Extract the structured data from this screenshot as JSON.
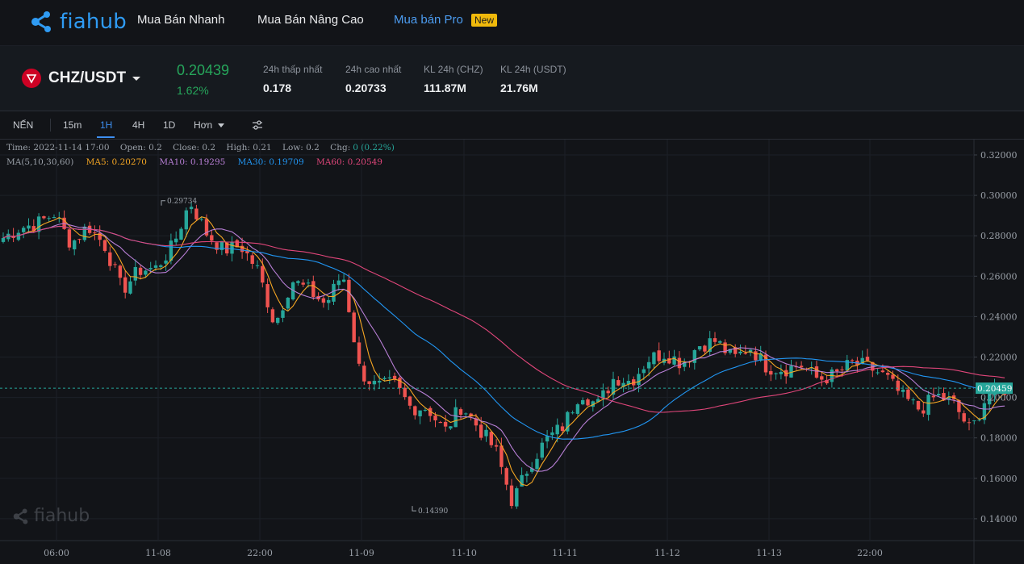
{
  "nav": {
    "logo_text": "fiahub",
    "items": [
      {
        "label": "Mua Bán Nhanh"
      },
      {
        "label": "Mua Bán Nâng Cao"
      },
      {
        "label": "Mua bán Pro"
      }
    ],
    "new_badge": "New"
  },
  "ticker": {
    "pair": "CHZ/USDT",
    "price": "0.20439",
    "change_pct": "1.62%",
    "stats": [
      {
        "label": "24h thấp nhất",
        "value": "0.178"
      },
      {
        "label": "24h cao nhất",
        "value": "0.20733"
      },
      {
        "label": "KL 24h (CHZ)",
        "value": "111.87M"
      },
      {
        "label": "KL 24h (USDT)",
        "value": "21.76M"
      }
    ]
  },
  "toolbar": {
    "chart_type": "NẾN",
    "intervals": [
      "15m",
      "1H",
      "4H",
      "1D"
    ],
    "active_interval": "1H",
    "more_label": "Hơn",
    "settings_icon": "sliders-icon"
  },
  "legend": {
    "time": "Time: 2022-11-14 17:00",
    "open": "Open: 0.2",
    "close": "Close: 0.2",
    "high": "High: 0.21",
    "low": "Low: 0.2",
    "chg_label": "Chg:",
    "chg_value": "0 (0.22%)",
    "ma_label": "MA(5,10,30,60)",
    "ma5": "MA5: 0.20270",
    "ma10": "MA10: 0.19295",
    "ma30": "MA30: 0.19709",
    "ma60": "MA60: 0.20549"
  },
  "colors": {
    "up": "#26a69a",
    "down": "#ef5350",
    "ma5": "#f5a623",
    "ma10": "#b87fd6",
    "ma30": "#2196f3",
    "ma60": "#e0467a",
    "accent": "#3d8ff0"
  },
  "chart_data": {
    "type": "candlestick",
    "y_ticks": [
      "0.32000",
      "0.30000",
      "0.28000",
      "0.26000",
      "0.24000",
      "0.22000",
      "0.20000",
      "0.18000",
      "0.16000",
      "0.14000"
    ],
    "x_ticks": [
      "06:00",
      "11-08",
      "22:00",
      "11-09",
      "11-10",
      "11-11",
      "11-12",
      "11-13",
      "22:00"
    ],
    "ylim": [
      0.13,
      0.325
    ],
    "current_price_label": "0.20459",
    "current_price": 0.20459,
    "high_marker": {
      "label": "0.29734",
      "value": 0.29734
    },
    "low_marker": {
      "label": "0.14390",
      "value": 0.1439
    },
    "close_path": [
      0.279,
      0.284,
      0.286,
      0.291,
      0.276,
      0.285,
      0.275,
      0.253,
      0.263,
      0.264,
      0.275,
      0.297,
      0.281,
      0.273,
      0.275,
      0.263,
      0.236,
      0.258,
      0.253,
      0.246,
      0.262,
      0.213,
      0.205,
      0.207,
      0.195,
      0.195,
      0.183,
      0.196,
      0.185,
      0.174,
      0.148,
      0.167,
      0.179,
      0.186,
      0.203,
      0.196,
      0.21,
      0.208,
      0.219,
      0.222,
      0.217,
      0.226,
      0.228,
      0.219,
      0.225,
      0.215,
      0.214,
      0.216,
      0.209,
      0.211,
      0.217,
      0.215,
      0.21,
      0.2,
      0.194,
      0.201,
      0.197,
      0.183,
      0.202,
      0.204
    ],
    "series": [
      {
        "name": "MA5"
      },
      {
        "name": "MA10"
      },
      {
        "name": "MA30"
      },
      {
        "name": "MA60"
      }
    ],
    "grid": true
  },
  "watermark": "fiahub"
}
